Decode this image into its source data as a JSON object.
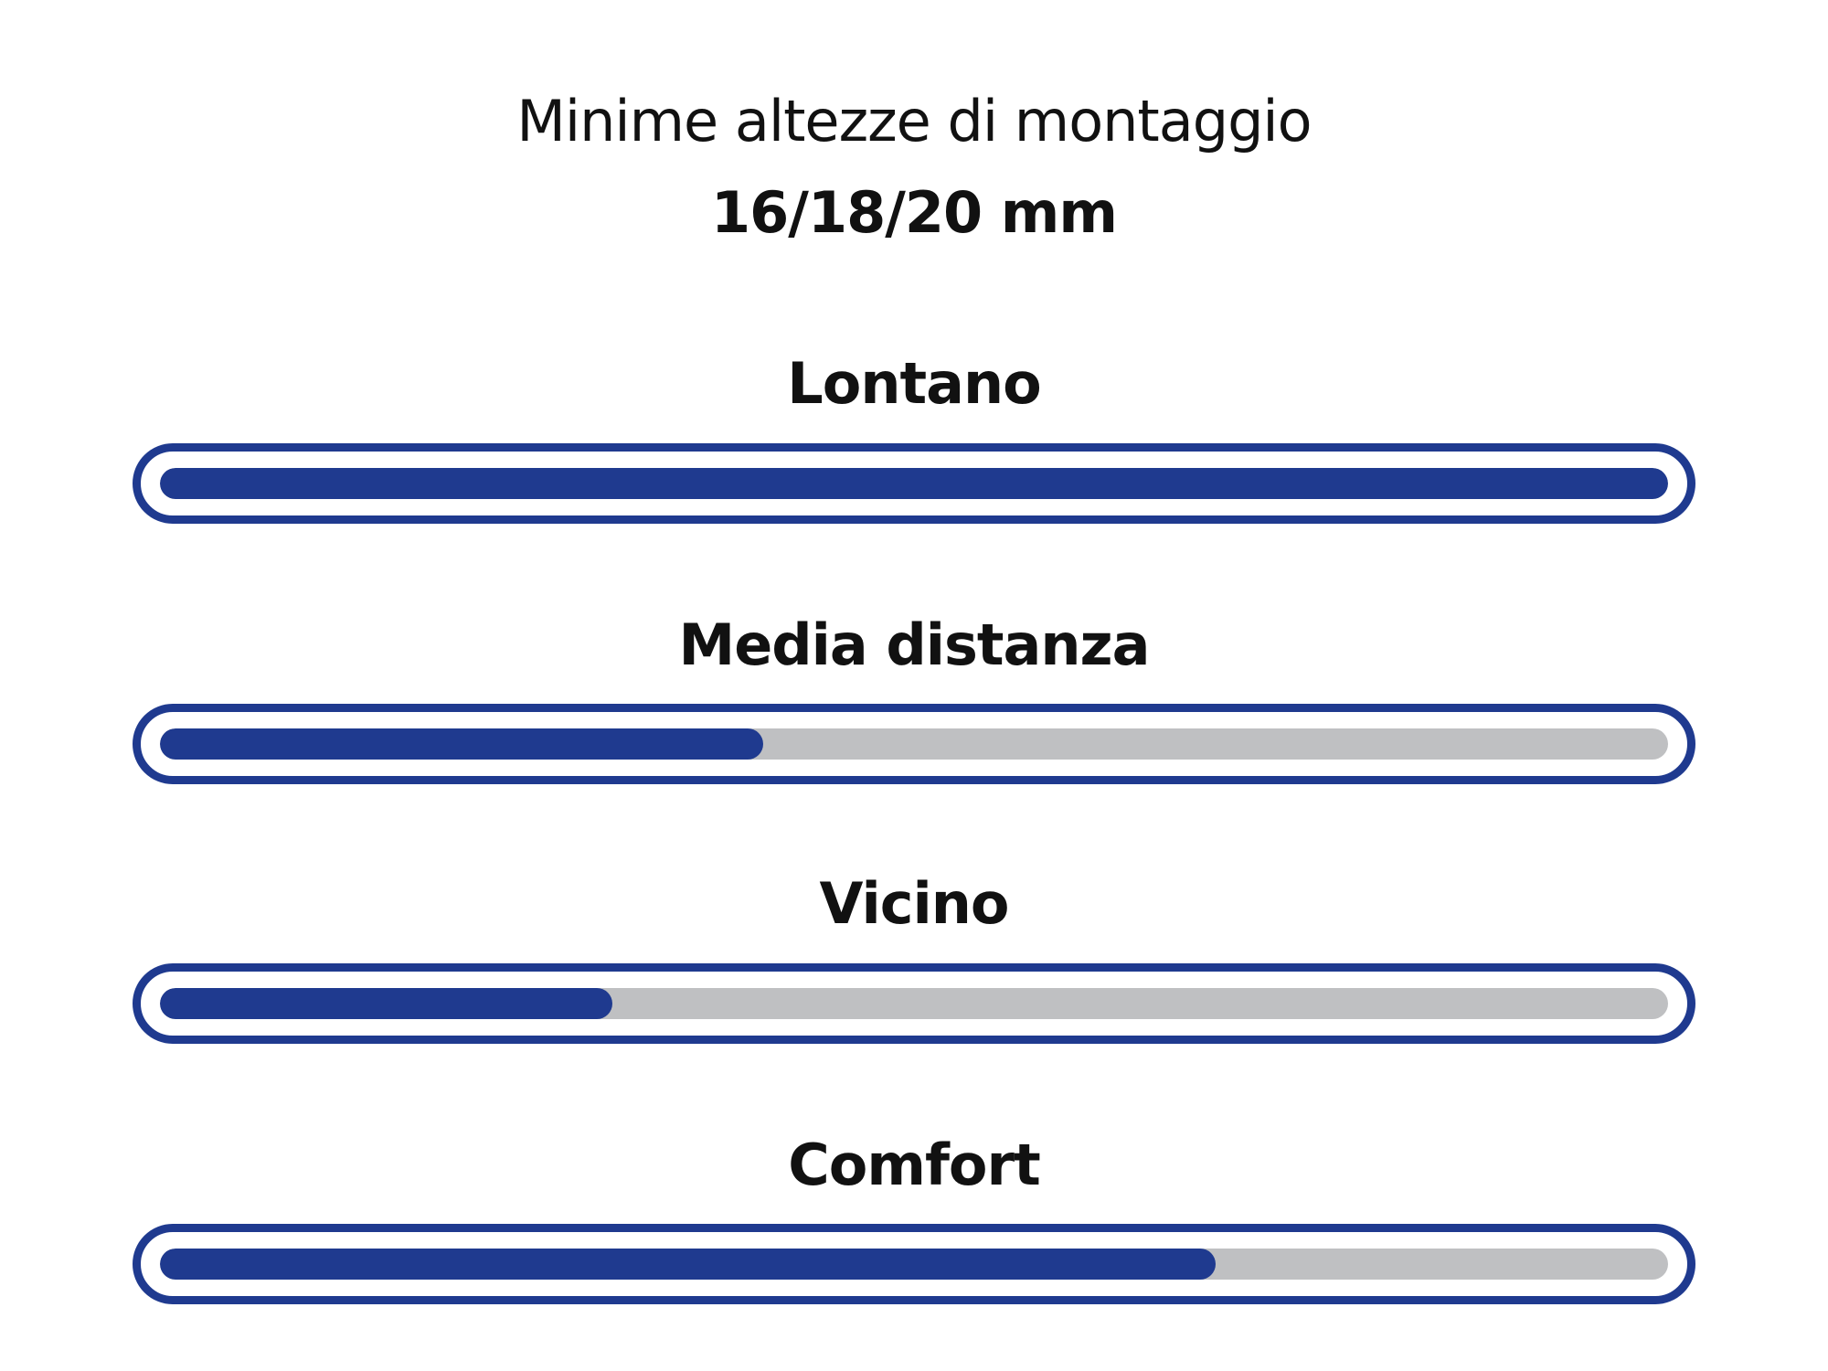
{
  "chart_data": {
    "type": "bar",
    "orientation": "horizontal",
    "title": "Minime altezze di montaggio",
    "subtitle": "16/18/20 mm",
    "categories": [
      "Lontano",
      "Media distanza",
      "Vicino",
      "Comfort"
    ],
    "values": [
      100,
      40,
      30,
      70
    ],
    "unit": "percent",
    "xlim": [
      0,
      100
    ],
    "grid": false,
    "colors": {
      "fill": "#1f3a8f",
      "track": "#bfc0c2",
      "border": "#1f3a8f"
    }
  }
}
